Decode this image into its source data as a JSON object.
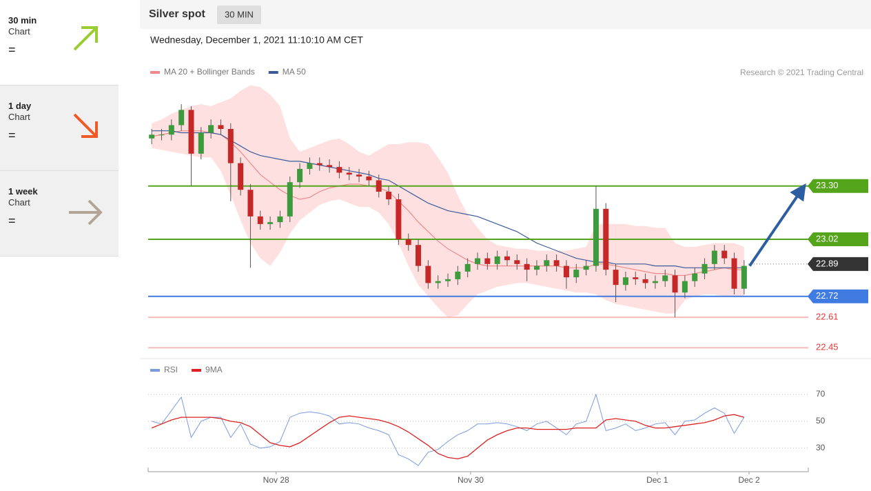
{
  "sidebar": [
    {
      "period": "30 min",
      "label": "Chart",
      "trend": "="
    },
    {
      "period": "1 day",
      "label": "Chart",
      "trend": "="
    },
    {
      "period": "1 week",
      "label": "Chart",
      "trend": "="
    }
  ],
  "header": {
    "title": "Silver spot",
    "interval": "30 MIN"
  },
  "chart_data": [
    {
      "type": "candlestick",
      "subtitle": "Wednesday, December 1, 2021 11:10:10 AM CET",
      "source": "Research © 2021 Trading Central",
      "up_color": "#3d9a3d",
      "down_color": "#c62828",
      "open": [
        23.55,
        23.57,
        23.57,
        23.62,
        23.7,
        23.47,
        23.58,
        23.62,
        23.6,
        23.42,
        23.28,
        23.14,
        23.1,
        23.11,
        23.14,
        23.32,
        23.39,
        23.42,
        23.41,
        23.4,
        23.37,
        23.36,
        23.35,
        23.33,
        23.27,
        23.23,
        23.02,
        22.99,
        22.88,
        22.79,
        22.8,
        22.81,
        22.85,
        22.89,
        22.92,
        22.89,
        22.93,
        22.91,
        22.89,
        22.86,
        22.88,
        22.91,
        22.88,
        22.82,
        22.86,
        22.88,
        23.18,
        22.86,
        22.78,
        22.82,
        22.81,
        22.79,
        22.8,
        22.83,
        22.74,
        22.8,
        22.84,
        22.89,
        22.96,
        22.92,
        22.76
      ],
      "high": [
        23.6,
        23.6,
        23.65,
        23.73,
        23.72,
        23.61,
        23.65,
        23.65,
        23.63,
        23.45,
        23.31,
        23.17,
        23.14,
        23.17,
        23.35,
        23.42,
        23.45,
        23.45,
        23.44,
        23.43,
        23.4,
        23.39,
        23.38,
        23.36,
        23.3,
        23.26,
        23.05,
        23.02,
        22.91,
        22.83,
        22.84,
        22.88,
        22.92,
        22.95,
        22.95,
        22.96,
        22.96,
        22.94,
        22.92,
        22.91,
        22.94,
        22.94,
        22.91,
        22.89,
        22.91,
        23.3,
        23.21,
        22.89,
        22.85,
        22.85,
        22.84,
        22.83,
        22.86,
        22.86,
        22.83,
        22.87,
        22.92,
        22.99,
        22.99,
        22.95,
        22.91
      ],
      "low": [
        23.52,
        23.54,
        23.54,
        23.59,
        23.3,
        23.44,
        23.55,
        23.57,
        23.22,
        23.25,
        22.87,
        23.07,
        23.07,
        23.08,
        23.11,
        23.29,
        23.36,
        23.38,
        23.37,
        23.34,
        23.33,
        23.32,
        23.3,
        23.24,
        23.2,
        22.99,
        22.96,
        22.85,
        22.76,
        22.76,
        22.77,
        22.78,
        22.82,
        22.86,
        22.86,
        22.86,
        22.88,
        22.86,
        22.8,
        22.83,
        22.85,
        22.85,
        22.76,
        22.79,
        22.83,
        22.85,
        22.83,
        22.69,
        22.75,
        22.78,
        22.76,
        22.76,
        22.77,
        22.61,
        22.71,
        22.77,
        22.81,
        22.86,
        22.89,
        22.73,
        22.73
      ],
      "close": [
        23.57,
        23.57,
        23.62,
        23.7,
        23.47,
        23.58,
        23.62,
        23.6,
        23.42,
        23.28,
        23.14,
        23.1,
        23.11,
        23.14,
        23.32,
        23.39,
        23.42,
        23.41,
        23.4,
        23.37,
        23.36,
        23.35,
        23.33,
        23.27,
        23.23,
        23.02,
        22.99,
        22.88,
        22.79,
        22.8,
        22.81,
        22.85,
        22.89,
        22.92,
        22.89,
        22.93,
        22.91,
        22.89,
        22.86,
        22.88,
        22.91,
        22.88,
        22.82,
        22.86,
        22.88,
        23.18,
        22.86,
        22.78,
        22.82,
        22.81,
        22.79,
        22.8,
        22.83,
        22.74,
        22.8,
        22.84,
        22.89,
        22.96,
        22.92,
        22.76,
        22.88
      ],
      "series": [
        {
          "name": "MA 20 + Bollinger Bands",
          "color": "#f08a8a",
          "band_color": "#ffd6d6",
          "values": [
            23.56,
            23.57,
            23.58,
            23.59,
            23.59,
            23.59,
            23.58,
            23.57,
            23.53,
            23.48,
            23.42,
            23.36,
            23.32,
            23.28,
            23.25,
            23.23,
            23.24,
            23.27,
            23.29,
            23.3,
            23.31,
            23.31,
            23.3,
            23.29,
            23.27,
            23.22,
            23.17,
            23.11,
            23.06,
            23.01,
            22.97,
            22.94,
            22.91,
            22.89,
            22.88,
            22.88,
            22.88,
            22.88,
            22.88,
            22.88,
            22.88,
            22.88,
            22.87,
            22.87,
            22.87,
            22.89,
            22.89,
            22.88,
            22.87,
            22.86,
            22.85,
            22.84,
            22.84,
            22.83,
            22.83,
            22.84,
            22.85,
            22.86,
            22.87,
            22.86,
            22.86
          ],
          "upper": [
            23.63,
            23.65,
            23.68,
            23.7,
            23.72,
            23.73,
            23.72,
            23.74,
            23.76,
            23.8,
            23.83,
            23.82,
            23.78,
            23.72,
            23.55,
            23.48,
            23.5,
            23.52,
            23.54,
            23.55,
            23.52,
            23.48,
            23.46,
            23.49,
            23.52,
            23.52,
            23.53,
            23.53,
            23.52,
            23.45,
            23.37,
            23.25,
            23.15,
            23.08,
            23.02,
            22.99,
            22.98,
            22.97,
            22.97,
            22.96,
            22.96,
            22.96,
            22.96,
            22.97,
            22.98,
            23.1,
            23.1,
            23.1,
            23.1,
            23.09,
            23.09,
            23.08,
            23.08,
            23.0,
            22.98,
            22.98,
            22.99,
            23.0,
            23.0,
            23.0,
            22.98
          ],
          "lower": [
            23.5,
            23.49,
            23.48,
            23.47,
            23.46,
            23.45,
            23.45,
            23.38,
            23.25,
            23.12,
            23.0,
            22.92,
            22.88,
            22.95,
            23.05,
            23.12,
            23.16,
            23.2,
            23.22,
            23.23,
            23.21,
            23.19,
            23.19,
            23.16,
            23.1,
            23.0,
            22.88,
            22.78,
            22.72,
            22.66,
            22.61,
            22.62,
            22.68,
            22.73,
            22.75,
            22.77,
            22.78,
            22.79,
            22.79,
            22.78,
            22.77,
            22.76,
            22.75,
            22.74,
            22.74,
            22.73,
            22.7,
            22.68,
            22.67,
            22.66,
            22.65,
            22.64,
            22.63,
            22.63,
            22.7,
            22.72,
            22.73,
            22.73,
            22.72,
            22.72,
            22.72
          ]
        },
        {
          "name": "MA 50",
          "color": "#3a5a9a",
          "values": [
            23.59,
            23.59,
            23.59,
            23.58,
            23.58,
            23.58,
            23.58,
            23.57,
            23.54,
            23.51,
            23.48,
            23.46,
            23.45,
            23.44,
            23.43,
            23.43,
            23.42,
            23.41,
            23.4,
            23.39,
            23.38,
            23.37,
            23.36,
            23.34,
            23.33,
            23.3,
            23.27,
            23.24,
            23.21,
            23.19,
            23.17,
            23.16,
            23.15,
            23.14,
            23.12,
            23.1,
            23.08,
            23.06,
            23.03,
            23.0,
            22.98,
            22.96,
            22.94,
            22.92,
            22.91,
            22.9,
            22.9,
            22.89,
            22.89,
            22.89,
            22.89,
            22.88,
            22.88,
            22.88,
            22.87,
            22.87,
            22.87,
            22.87,
            22.87,
            22.87,
            22.87
          ]
        }
      ],
      "levels": [
        {
          "value": 23.3,
          "label": "23.30",
          "color": "#55a51c",
          "kind": "box"
        },
        {
          "value": 23.02,
          "color": "#55a51c",
          "kind": "box"
        },
        {
          "value": 22.89,
          "color": "#333333",
          "kind": "dotted"
        },
        {
          "value": 22.72,
          "color": "#3f7be0",
          "kind": "box"
        },
        {
          "value": 22.61,
          "color": "#e53935",
          "kind": "text"
        },
        {
          "value": 22.45,
          "color": "#e53935",
          "kind": "text"
        }
      ],
      "arrow_color": "#2d5fa0",
      "xlim": [
        -0.5,
        66.5
      ],
      "ylim": [
        22.4,
        23.85
      ]
    },
    {
      "type": "line",
      "series": [
        {
          "name": "RSI",
          "color": "#7b9be0",
          "values": [
            50,
            48,
            58,
            68,
            38,
            50,
            53,
            53,
            38,
            48,
            33,
            30,
            31,
            35,
            53,
            56,
            57,
            56,
            54,
            48,
            49,
            48,
            45,
            43,
            40,
            25,
            22,
            17,
            27,
            29,
            35,
            40,
            43,
            48,
            48,
            49,
            48,
            46,
            43,
            48,
            50,
            45,
            40,
            48,
            50,
            70,
            43,
            45,
            48,
            43,
            45,
            48,
            49,
            40,
            50,
            51,
            56,
            60,
            56,
            41,
            53
          ]
        },
        {
          "name": "9MA",
          "color": "#e02020",
          "values": [
            45,
            48,
            51,
            53,
            53,
            53,
            53,
            52,
            50,
            49,
            46,
            40,
            34,
            32,
            31,
            34,
            39,
            44,
            49,
            53,
            54,
            53,
            52,
            51,
            49,
            46,
            42,
            37,
            32,
            26,
            23,
            22,
            24,
            30,
            36,
            40,
            43,
            45,
            45,
            44,
            44,
            44,
            44,
            45,
            45,
            45,
            51,
            52,
            51,
            50,
            47,
            45,
            45,
            46,
            47,
            48,
            49,
            51,
            54,
            55,
            53
          ]
        }
      ],
      "xlim": [
        -0.5,
        66.5
      ],
      "ylim": [
        15,
        79
      ],
      "yticks": [
        30,
        50,
        70
      ],
      "grid": true,
      "xticks": [
        {
          "value": 12.6,
          "label": "Nov 28"
        },
        {
          "value": 32.3,
          "label": "Nov 30"
        },
        {
          "value": 51.2,
          "label": "Dec 1"
        },
        {
          "value": 60.5,
          "label": "Dec 2"
        }
      ]
    }
  ]
}
